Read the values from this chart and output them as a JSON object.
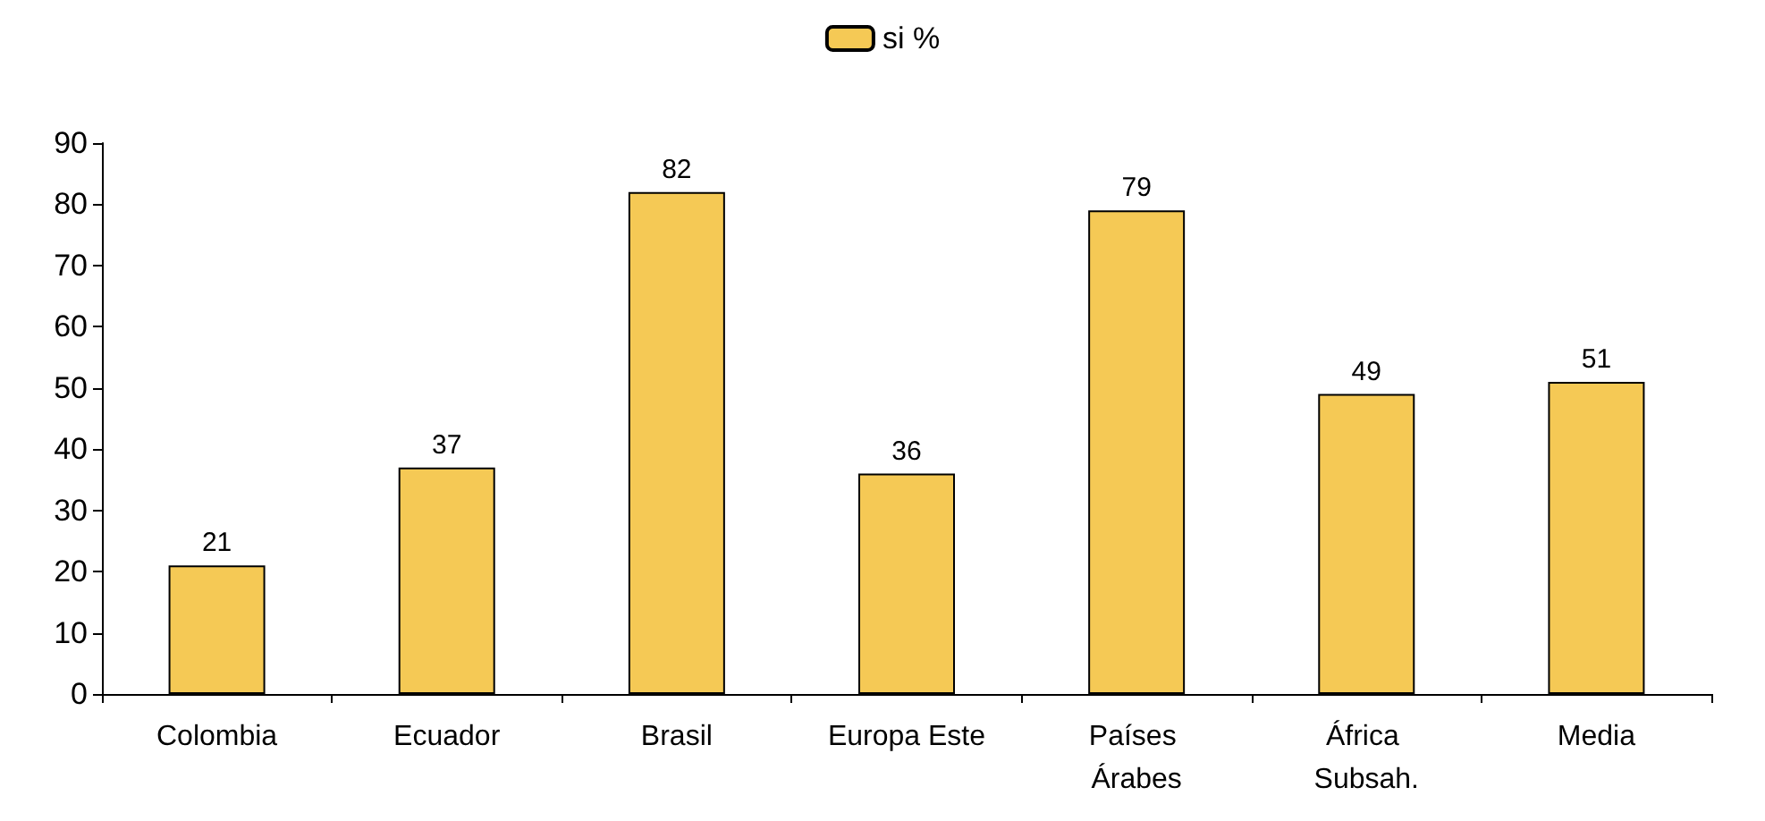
{
  "chart_data": {
    "type": "bar",
    "categories": [
      "Colombia",
      "Ecuador",
      "Brasil",
      "Europa Este",
      "Países Árabes",
      "África Subsah.",
      "Media"
    ],
    "series": [
      {
        "name": "si %",
        "color": "#f5c955",
        "values": [
          21,
          37,
          82,
          36,
          79,
          49,
          51
        ]
      }
    ],
    "ylim": [
      0,
      90
    ],
    "yticks": [
      0,
      10,
      20,
      30,
      40,
      50,
      60,
      70,
      80,
      90
    ],
    "grid": false,
    "legend": "top",
    "data_labels": true
  }
}
